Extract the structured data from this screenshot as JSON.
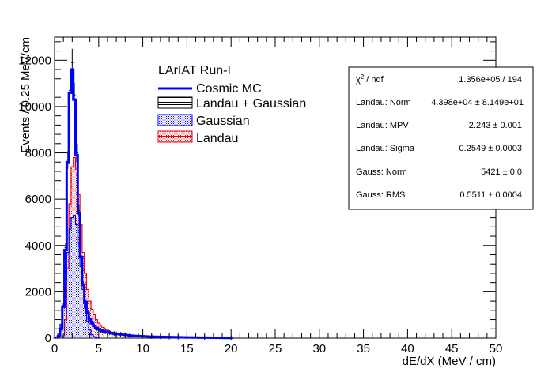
{
  "chart_data": {
    "type": "bar",
    "title": "",
    "xlabel": "dE/dX (MeV / cm)",
    "ylabel": "Events / 0.25 MeV/cm",
    "xlim": [
      0,
      50
    ],
    "ylim": [
      0,
      13000
    ],
    "x_ticks": [
      "0",
      "5",
      "10",
      "15",
      "20",
      "25",
      "30",
      "35",
      "40",
      "45",
      "50"
    ],
    "y_ticks": [
      "0",
      "2000",
      "4000",
      "6000",
      "8000",
      "10000",
      "12000"
    ],
    "bin_width": 0.25,
    "grid": false,
    "legend_position": "top-center",
    "legend_header": "LArIAT Run-I",
    "series": [
      {
        "name": "Cosmic MC",
        "style": "line-histogram",
        "color": "#0000ff",
        "x": [
          0.5,
          0.75,
          1.0,
          1.25,
          1.5,
          1.75,
          2.0,
          2.25,
          2.5,
          2.75,
          3.0,
          3.25,
          3.5,
          3.75,
          4.0,
          4.25,
          4.5,
          4.75,
          5.0,
          5.25,
          5.5,
          5.75,
          6.0,
          6.25,
          6.5,
          6.75,
          7.0,
          7.5,
          8.0,
          8.5,
          9.0,
          9.5,
          10.0,
          11.0,
          12.0,
          13.0,
          14.0,
          15.0,
          17.0,
          20.0
        ],
        "values": [
          80,
          400,
          1350,
          3800,
          7600,
          10600,
          11600,
          10300,
          7900,
          5400,
          3500,
          2300,
          1560,
          1100,
          820,
          640,
          520,
          440,
          380,
          340,
          300,
          270,
          250,
          230,
          210,
          190,
          180,
          160,
          140,
          120,
          100,
          90,
          80,
          65,
          55,
          45,
          40,
          30,
          20,
          10
        ]
      },
      {
        "name": "Landau + Gaussian",
        "style": "black-errorbars",
        "color": "#000000",
        "x": [
          0.5,
          0.75,
          1.0,
          1.25,
          1.5,
          1.75,
          2.0,
          2.25,
          2.5,
          2.75,
          3.0,
          3.25,
          3.5,
          3.75,
          4.0,
          4.25,
          4.5,
          4.75,
          5.0,
          5.25,
          5.5,
          5.75,
          6.0,
          6.25,
          6.5,
          6.75,
          7.0,
          7.5,
          8.0,
          8.5,
          9.0,
          9.5,
          10.0,
          11.0,
          12.0,
          13.0,
          14.0,
          15.0,
          17.0,
          20.0
        ],
        "values": [
          80,
          420,
          1400,
          3900,
          7700,
          10700,
          11900,
          10500,
          8000,
          5500,
          3550,
          2350,
          1600,
          1120,
          830,
          650,
          530,
          450,
          390,
          345,
          305,
          275,
          255,
          235,
          215,
          195,
          185,
          165,
          145,
          125,
          105,
          95,
          85,
          70,
          58,
          48,
          42,
          32,
          22,
          12
        ]
      },
      {
        "name": "Gaussian",
        "style": "blue-hatched-fill",
        "color": "#0000ff",
        "x": [
          0.0,
          0.25,
          0.5,
          0.75,
          1.0,
          1.25,
          1.5,
          1.75,
          2.0,
          2.25,
          2.5,
          2.75,
          3.0,
          3.25,
          3.5,
          3.75,
          4.0,
          4.25,
          4.5,
          4.75,
          5.0
        ],
        "values": [
          0,
          50,
          200,
          600,
          1400,
          2500,
          3700,
          4700,
          5200,
          5300,
          4900,
          4100,
          3100,
          2100,
          1300,
          700,
          350,
          150,
          60,
          20,
          0
        ]
      },
      {
        "name": "Landau",
        "style": "red-hatched-fill",
        "color": "#e8000b",
        "x": [
          1.0,
          1.25,
          1.5,
          1.75,
          2.0,
          2.25,
          2.5,
          2.75,
          3.0,
          3.25,
          3.5,
          3.75,
          4.0,
          4.25,
          4.5,
          4.75,
          5.0,
          5.5,
          6.0,
          6.5,
          7.0,
          7.5,
          8.0,
          9.0,
          10.0
        ],
        "values": [
          100,
          800,
          3000,
          5800,
          7400,
          7800,
          7300,
          6200,
          4900,
          3700,
          2800,
          2100,
          1600,
          1250,
          1000,
          800,
          650,
          460,
          340,
          260,
          200,
          160,
          130,
          90,
          60
        ]
      }
    ]
  },
  "stats_box": {
    "rows": [
      {
        "label_main": "χ",
        "label_sup": "2",
        "label_rest": " / ndf",
        "value": "1.356e+05 / 194"
      },
      {
        "label": "Landau: Norm",
        "value": "4.398e+04 ± 8.149e+01"
      },
      {
        "label": "Landau: MPV",
        "value": "2.243 ± 0.001"
      },
      {
        "label": "Landau: Sigma",
        "value": "0.2549 ± 0.0003"
      },
      {
        "label": "Gauss: Norm",
        "value": "5421 ± 0.0"
      },
      {
        "label": "Gauss: RMS",
        "value": "0.5511 ± 0.0004"
      }
    ]
  }
}
